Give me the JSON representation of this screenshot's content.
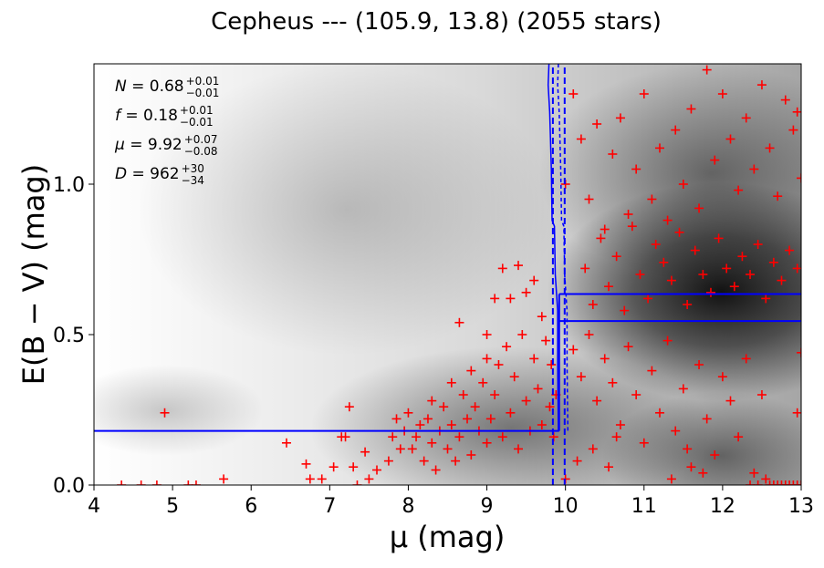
{
  "chart_data": {
    "type": "scatter",
    "title": "Cepheus --- (105.9, 13.8) (2055 stars)",
    "xlabel": "μ (mag)",
    "ylabel": "E(B − V) (mag)",
    "xlim": [
      4,
      13
    ],
    "ylim": [
      0,
      1.4
    ],
    "xticks": [
      4,
      5,
      6,
      7,
      8,
      9,
      10,
      11,
      12,
      13
    ],
    "xtick_labels": [
      "4",
      "5",
      "6",
      "7",
      "8",
      "9",
      "10",
      "11",
      "12",
      "13"
    ],
    "yticks": [
      0.0,
      0.5,
      1.0
    ],
    "ytick_labels": [
      "0.0",
      "0.5",
      "1.0"
    ],
    "grid": false,
    "annotations": [
      {
        "sym": "N",
        "val": "0.68",
        "sup": "+0.01",
        "sub": "−0.01"
      },
      {
        "sym": "f",
        "val": "0.18",
        "sup": "+0.01",
        "sub": "−0.01"
      },
      {
        "sym": "μ",
        "val": "9.92",
        "sup": "+0.07",
        "sub": "−0.08"
      },
      {
        "sym": "D",
        "val": "962",
        "sup": "+30",
        "sub": "−34"
      }
    ],
    "fit": {
      "mu": 9.92,
      "mu_err_low": 9.84,
      "mu_err_high": 9.99,
      "foreground_ebv": 0.18,
      "background_ebv_low": 0.545,
      "background_ebv_high": 0.635
    },
    "samples_curve": [
      [
        9.79,
        1.4
      ],
      [
        9.78,
        1.33
      ],
      [
        9.8,
        1.24
      ],
      [
        9.82,
        1.05
      ],
      [
        9.83,
        0.88
      ],
      [
        9.86,
        0.86
      ],
      [
        9.87,
        0.7
      ],
      [
        9.9,
        0.58
      ],
      [
        9.9,
        0.4
      ],
      [
        9.91,
        0.18
      ]
    ],
    "series": [
      {
        "name": "",
        "color": "#ff0000",
        "marker": "+",
        "points": [
          [
            4.35,
            0.0
          ],
          [
            4.6,
            0.0
          ],
          [
            4.8,
            0.0
          ],
          [
            5.2,
            0.0
          ],
          [
            5.3,
            0.0
          ],
          [
            5.65,
            0.02
          ],
          [
            4.9,
            0.24
          ],
          [
            6.45,
            0.14
          ],
          [
            6.7,
            0.07
          ],
          [
            6.75,
            0.02
          ],
          [
            6.9,
            0.02
          ],
          [
            7.05,
            0.06
          ],
          [
            7.15,
            0.16
          ],
          [
            7.2,
            0.16
          ],
          [
            7.25,
            0.26
          ],
          [
            7.3,
            0.06
          ],
          [
            7.35,
            0.0
          ],
          [
            7.45,
            0.11
          ],
          [
            7.5,
            0.02
          ],
          [
            7.6,
            0.05
          ],
          [
            7.75,
            0.08
          ],
          [
            7.8,
            0.16
          ],
          [
            7.85,
            0.22
          ],
          [
            7.9,
            0.12
          ],
          [
            7.95,
            0.18
          ],
          [
            8.0,
            0.24
          ],
          [
            8.05,
            0.12
          ],
          [
            8.1,
            0.16
          ],
          [
            8.15,
            0.2
          ],
          [
            8.2,
            0.08
          ],
          [
            8.25,
            0.22
          ],
          [
            8.3,
            0.14
          ],
          [
            8.35,
            0.05
          ],
          [
            8.4,
            0.18
          ],
          [
            8.45,
            0.26
          ],
          [
            8.5,
            0.12
          ],
          [
            8.55,
            0.2
          ],
          [
            8.6,
            0.08
          ],
          [
            8.65,
            0.16
          ],
          [
            8.7,
            0.3
          ],
          [
            8.75,
            0.22
          ],
          [
            8.8,
            0.1
          ],
          [
            8.85,
            0.26
          ],
          [
            8.9,
            0.18
          ],
          [
            8.95,
            0.34
          ],
          [
            9.0,
            0.14
          ],
          [
            9.05,
            0.22
          ],
          [
            9.1,
            0.3
          ],
          [
            9.15,
            0.4
          ],
          [
            9.2,
            0.16
          ],
          [
            9.25,
            0.46
          ],
          [
            9.3,
            0.24
          ],
          [
            9.35,
            0.36
          ],
          [
            9.4,
            0.12
          ],
          [
            9.45,
            0.5
          ],
          [
            9.5,
            0.28
          ],
          [
            9.55,
            0.18
          ],
          [
            9.6,
            0.42
          ],
          [
            9.65,
            0.32
          ],
          [
            9.7,
            0.2
          ],
          [
            9.75,
            0.48
          ],
          [
            9.8,
            0.26
          ],
          [
            9.82,
            0.4
          ],
          [
            9.85,
            0.16
          ],
          [
            9.88,
            0.3
          ],
          [
            8.65,
            0.54
          ],
          [
            9.2,
            0.72
          ],
          [
            9.3,
            0.62
          ],
          [
            9.4,
            0.73
          ],
          [
            9.5,
            0.64
          ],
          [
            9.6,
            0.68
          ],
          [
            9.7,
            0.56
          ],
          [
            9.1,
            0.62
          ],
          [
            9.0,
            0.5
          ],
          [
            8.3,
            0.28
          ],
          [
            8.55,
            0.34
          ],
          [
            8.8,
            0.38
          ],
          [
            9.0,
            0.42
          ],
          [
            10.0,
            1.0
          ],
          [
            10.1,
            1.3
          ],
          [
            10.2,
            1.15
          ],
          [
            10.3,
            0.95
          ],
          [
            10.4,
            1.2
          ],
          [
            10.5,
            0.85
          ],
          [
            10.6,
            1.1
          ],
          [
            10.7,
            1.22
          ],
          [
            10.8,
            0.9
          ],
          [
            10.9,
            1.05
          ],
          [
            11.0,
            1.3
          ],
          [
            11.1,
            0.95
          ],
          [
            11.2,
            1.12
          ],
          [
            11.3,
            0.88
          ],
          [
            11.4,
            1.18
          ],
          [
            11.5,
            1.0
          ],
          [
            11.6,
            1.25
          ],
          [
            11.7,
            0.92
          ],
          [
            11.8,
            1.38
          ],
          [
            11.9,
            1.08
          ],
          [
            12.0,
            1.3
          ],
          [
            12.1,
            1.15
          ],
          [
            12.2,
            0.98
          ],
          [
            12.3,
            1.22
          ],
          [
            12.4,
            1.05
          ],
          [
            12.5,
            1.33
          ],
          [
            12.6,
            1.12
          ],
          [
            12.7,
            0.96
          ],
          [
            12.8,
            1.28
          ],
          [
            12.9,
            1.18
          ],
          [
            13.0,
            1.02
          ],
          [
            12.95,
            1.24
          ],
          [
            10.25,
            0.72
          ],
          [
            10.35,
            0.6
          ],
          [
            10.45,
            0.82
          ],
          [
            10.55,
            0.66
          ],
          [
            10.65,
            0.76
          ],
          [
            10.75,
            0.58
          ],
          [
            10.85,
            0.86
          ],
          [
            10.95,
            0.7
          ],
          [
            11.05,
            0.62
          ],
          [
            11.15,
            0.8
          ],
          [
            11.25,
            0.74
          ],
          [
            11.35,
            0.68
          ],
          [
            11.45,
            0.84
          ],
          [
            11.55,
            0.6
          ],
          [
            11.65,
            0.78
          ],
          [
            11.75,
            0.7
          ],
          [
            11.85,
            0.64
          ],
          [
            11.95,
            0.82
          ],
          [
            12.05,
            0.72
          ],
          [
            12.15,
            0.66
          ],
          [
            12.25,
            0.76
          ],
          [
            12.35,
            0.7
          ],
          [
            12.45,
            0.8
          ],
          [
            12.55,
            0.62
          ],
          [
            12.65,
            0.74
          ],
          [
            12.75,
            0.68
          ],
          [
            12.85,
            0.78
          ],
          [
            12.95,
            0.72
          ],
          [
            10.1,
            0.45
          ],
          [
            10.2,
            0.36
          ],
          [
            10.3,
            0.5
          ],
          [
            10.4,
            0.28
          ],
          [
            10.5,
            0.42
          ],
          [
            10.6,
            0.34
          ],
          [
            10.7,
            0.2
          ],
          [
            10.8,
            0.46
          ],
          [
            10.9,
            0.3
          ],
          [
            11.0,
            0.14
          ],
          [
            11.1,
            0.38
          ],
          [
            11.2,
            0.24
          ],
          [
            11.3,
            0.48
          ],
          [
            11.4,
            0.18
          ],
          [
            11.5,
            0.32
          ],
          [
            11.6,
            0.06
          ],
          [
            11.7,
            0.4
          ],
          [
            11.8,
            0.22
          ],
          [
            11.9,
            0.1
          ],
          [
            12.0,
            0.36
          ],
          [
            12.1,
            0.28
          ],
          [
            12.2,
            0.16
          ],
          [
            12.3,
            0.42
          ],
          [
            12.4,
            0.04
          ],
          [
            12.5,
            0.3
          ],
          [
            12.6,
            0.0
          ],
          [
            12.7,
            0.0
          ],
          [
            12.8,
            0.0
          ],
          [
            12.9,
            0.0
          ],
          [
            13.0,
            0.0
          ],
          [
            12.65,
            0.0
          ],
          [
            12.75,
            0.0
          ],
          [
            12.85,
            0.0
          ],
          [
            12.95,
            0.0
          ],
          [
            12.55,
            0.02
          ],
          [
            12.45,
            0.0
          ],
          [
            12.35,
            0.0
          ],
          [
            10.0,
            0.02
          ],
          [
            10.15,
            0.08
          ],
          [
            10.35,
            0.12
          ],
          [
            10.55,
            0.06
          ],
          [
            10.65,
            0.16
          ],
          [
            11.35,
            0.02
          ],
          [
            11.55,
            0.12
          ],
          [
            11.75,
            0.04
          ],
          [
            12.95,
            0.24
          ],
          [
            13.0,
            0.44
          ]
        ]
      }
    ]
  }
}
